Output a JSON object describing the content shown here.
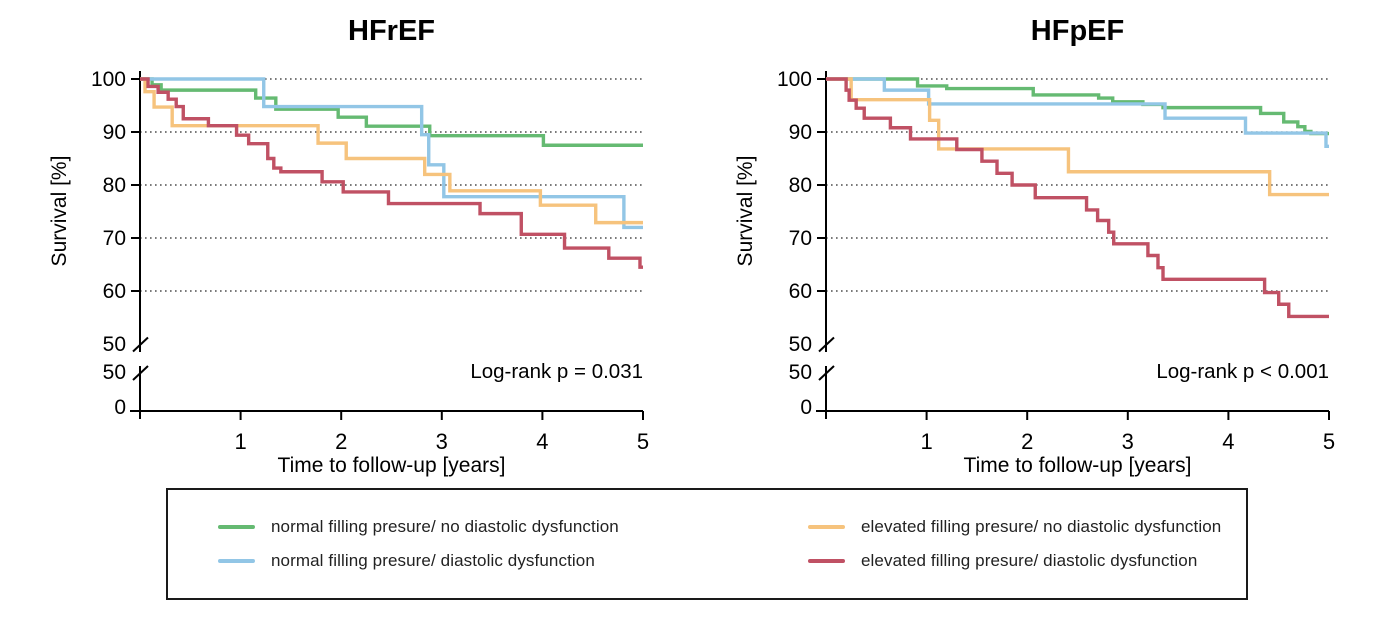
{
  "figure": {
    "background": "#ffffff",
    "shared_xlabel": "Time to follow-up [years]",
    "shared_ylabel": "Survival [%]"
  },
  "colors": {
    "green": "#65ba72",
    "blue": "#92c6e6",
    "orange": "#f6c37d",
    "red": "#c05164",
    "axis": "#000000",
    "grid": "#2b2b2b",
    "text": "#000000"
  },
  "legend": {
    "items": [
      {
        "color": "green",
        "label": "normal filling presure/ no diastolic dysfunction"
      },
      {
        "color": "blue",
        "label": "normal filling presure/ diastolic dysfunction"
      },
      {
        "color": "orange",
        "label": "elevated filling presure/ no diastolic dysfunction"
      },
      {
        "color": "red",
        "label": "elevated filling presure/ diastolic dysfunction"
      }
    ]
  },
  "chart_data": [
    {
      "type": "line",
      "subtype": "kaplan-meier-step",
      "title": "HFrEF",
      "annotation": "Log-rank p = 0.031",
      "xlabel": "Time to follow-up [years]",
      "ylabel": "Survival [%]",
      "xlim": [
        0,
        5
      ],
      "xticks": [
        1,
        2,
        3,
        4,
        5
      ],
      "ylim": [
        50,
        100
      ],
      "yticks": [
        100,
        90,
        80,
        70,
        60,
        50
      ],
      "y_axis_break": {
        "lower_ticks": [
          "50",
          "0"
        ]
      },
      "gridlines": [
        100,
        90,
        80,
        70,
        60
      ],
      "grid_style": "dotted",
      "series": [
        {
          "name": "normal filling presure/ no diastolic dysfunction",
          "color": "green",
          "points": [
            [
              0,
              100
            ],
            [
              0.12,
              98.9
            ],
            [
              0.21,
              97.9
            ],
            [
              1.15,
              96.4
            ],
            [
              1.35,
              94.3
            ],
            [
              1.97,
              92.8
            ],
            [
              2.25,
              91.1
            ],
            [
              2.88,
              89.3
            ],
            [
              4.01,
              87.5
            ],
            [
              5,
              87.5
            ]
          ]
        },
        {
          "name": "normal filling presure/ diastolic dysfunction",
          "color": "blue",
          "points": [
            [
              0,
              100
            ],
            [
              1.23,
              94.8
            ],
            [
              2.8,
              89.5
            ],
            [
              2.87,
              83.8
            ],
            [
              3.02,
              77.8
            ],
            [
              4.81,
              72.0
            ],
            [
              5,
              72.0
            ]
          ]
        },
        {
          "name": "elevated filling presure/ no diastolic dysfunction",
          "color": "orange",
          "points": [
            [
              0,
              100
            ],
            [
              0.05,
              97.6
            ],
            [
              0.14,
              94.7
            ],
            [
              0.32,
              91.2
            ],
            [
              1.77,
              87.9
            ],
            [
              2.05,
              85.0
            ],
            [
              2.83,
              82.0
            ],
            [
              3.08,
              78.9
            ],
            [
              3.98,
              76.2
            ],
            [
              4.53,
              72.9
            ],
            [
              5,
              72.9
            ]
          ]
        },
        {
          "name": "elevated filling presure/ diastolic dysfunction",
          "color": "red",
          "points": [
            [
              0,
              100
            ],
            [
              0.08,
              98.6
            ],
            [
              0.18,
              97.5
            ],
            [
              0.28,
              96.2
            ],
            [
              0.36,
              94.8
            ],
            [
              0.43,
              92.5
            ],
            [
              0.68,
              91.2
            ],
            [
              0.96,
              89.4
            ],
            [
              1.08,
              87.8
            ],
            [
              1.27,
              85.0
            ],
            [
              1.33,
              83.2
            ],
            [
              1.4,
              82.5
            ],
            [
              1.81,
              80.6
            ],
            [
              2.02,
              78.7
            ],
            [
              2.47,
              76.5
            ],
            [
              3.38,
              74.6
            ],
            [
              3.79,
              70.7
            ],
            [
              4.22,
              68.1
            ],
            [
              4.66,
              66.2
            ],
            [
              4.97,
              64.5
            ],
            [
              5,
              64.5
            ]
          ]
        }
      ]
    },
    {
      "type": "line",
      "subtype": "kaplan-meier-step",
      "title": "HFpEF",
      "annotation": "Log-rank p < 0.001",
      "xlabel": "Time to follow-up [years]",
      "ylabel": "Survival [%]",
      "xlim": [
        0,
        5
      ],
      "xticks": [
        1,
        2,
        3,
        4,
        5
      ],
      "ylim": [
        50,
        100
      ],
      "yticks": [
        100,
        90,
        80,
        70,
        60,
        50
      ],
      "y_axis_break": {
        "lower_ticks": [
          "50",
          "0"
        ]
      },
      "gridlines": [
        100,
        90,
        80,
        70,
        60
      ],
      "grid_style": "dotted",
      "series": [
        {
          "name": "normal filling presure/ no diastolic dysfunction",
          "color": "green",
          "points": [
            [
              0,
              100
            ],
            [
              0.91,
              98.7
            ],
            [
              1.2,
              98.2
            ],
            [
              2.06,
              97.0
            ],
            [
              2.71,
              96.4
            ],
            [
              2.85,
              95.7
            ],
            [
              3.15,
              95.2
            ],
            [
              3.35,
              94.6
            ],
            [
              4.32,
              93.5
            ],
            [
              4.55,
              91.9
            ],
            [
              4.69,
              91.0
            ],
            [
              4.76,
              90.1
            ],
            [
              4.82,
              89.7
            ],
            [
              5,
              89.7
            ]
          ]
        },
        {
          "name": "normal filling presure/ diastolic dysfunction",
          "color": "blue",
          "points": [
            [
              0,
              100
            ],
            [
              0.58,
              97.9
            ],
            [
              1.02,
              95.3
            ],
            [
              3.37,
              92.6
            ],
            [
              4.17,
              89.8
            ],
            [
              4.97,
              87.3
            ],
            [
              5,
              87.3
            ]
          ]
        },
        {
          "name": "elevated filling presure/ no diastolic dysfunction",
          "color": "orange",
          "points": [
            [
              0,
              100
            ],
            [
              0.25,
              96.1
            ],
            [
              1.03,
              92.2
            ],
            [
              1.12,
              86.8
            ],
            [
              2.41,
              82.5
            ],
            [
              4.41,
              78.2
            ],
            [
              5,
              78.2
            ]
          ]
        },
        {
          "name": "elevated filling presure/ diastolic dysfunction",
          "color": "red",
          "points": [
            [
              0,
              100
            ],
            [
              0.2,
              97.9
            ],
            [
              0.23,
              96.0
            ],
            [
              0.3,
              94.5
            ],
            [
              0.38,
              92.6
            ],
            [
              0.64,
              90.8
            ],
            [
              0.84,
              88.7
            ],
            [
              1.3,
              86.7
            ],
            [
              1.55,
              84.5
            ],
            [
              1.7,
              82.2
            ],
            [
              1.85,
              80.0
            ],
            [
              2.08,
              77.6
            ],
            [
              2.59,
              75.3
            ],
            [
              2.7,
              73.3
            ],
            [
              2.81,
              71.1
            ],
            [
              2.86,
              68.9
            ],
            [
              3.2,
              66.7
            ],
            [
              3.3,
              64.4
            ],
            [
              3.35,
              62.2
            ],
            [
              4.36,
              59.7
            ],
            [
              4.5,
              57.5
            ],
            [
              4.6,
              55.2
            ],
            [
              5,
              55.2
            ]
          ]
        }
      ]
    }
  ]
}
